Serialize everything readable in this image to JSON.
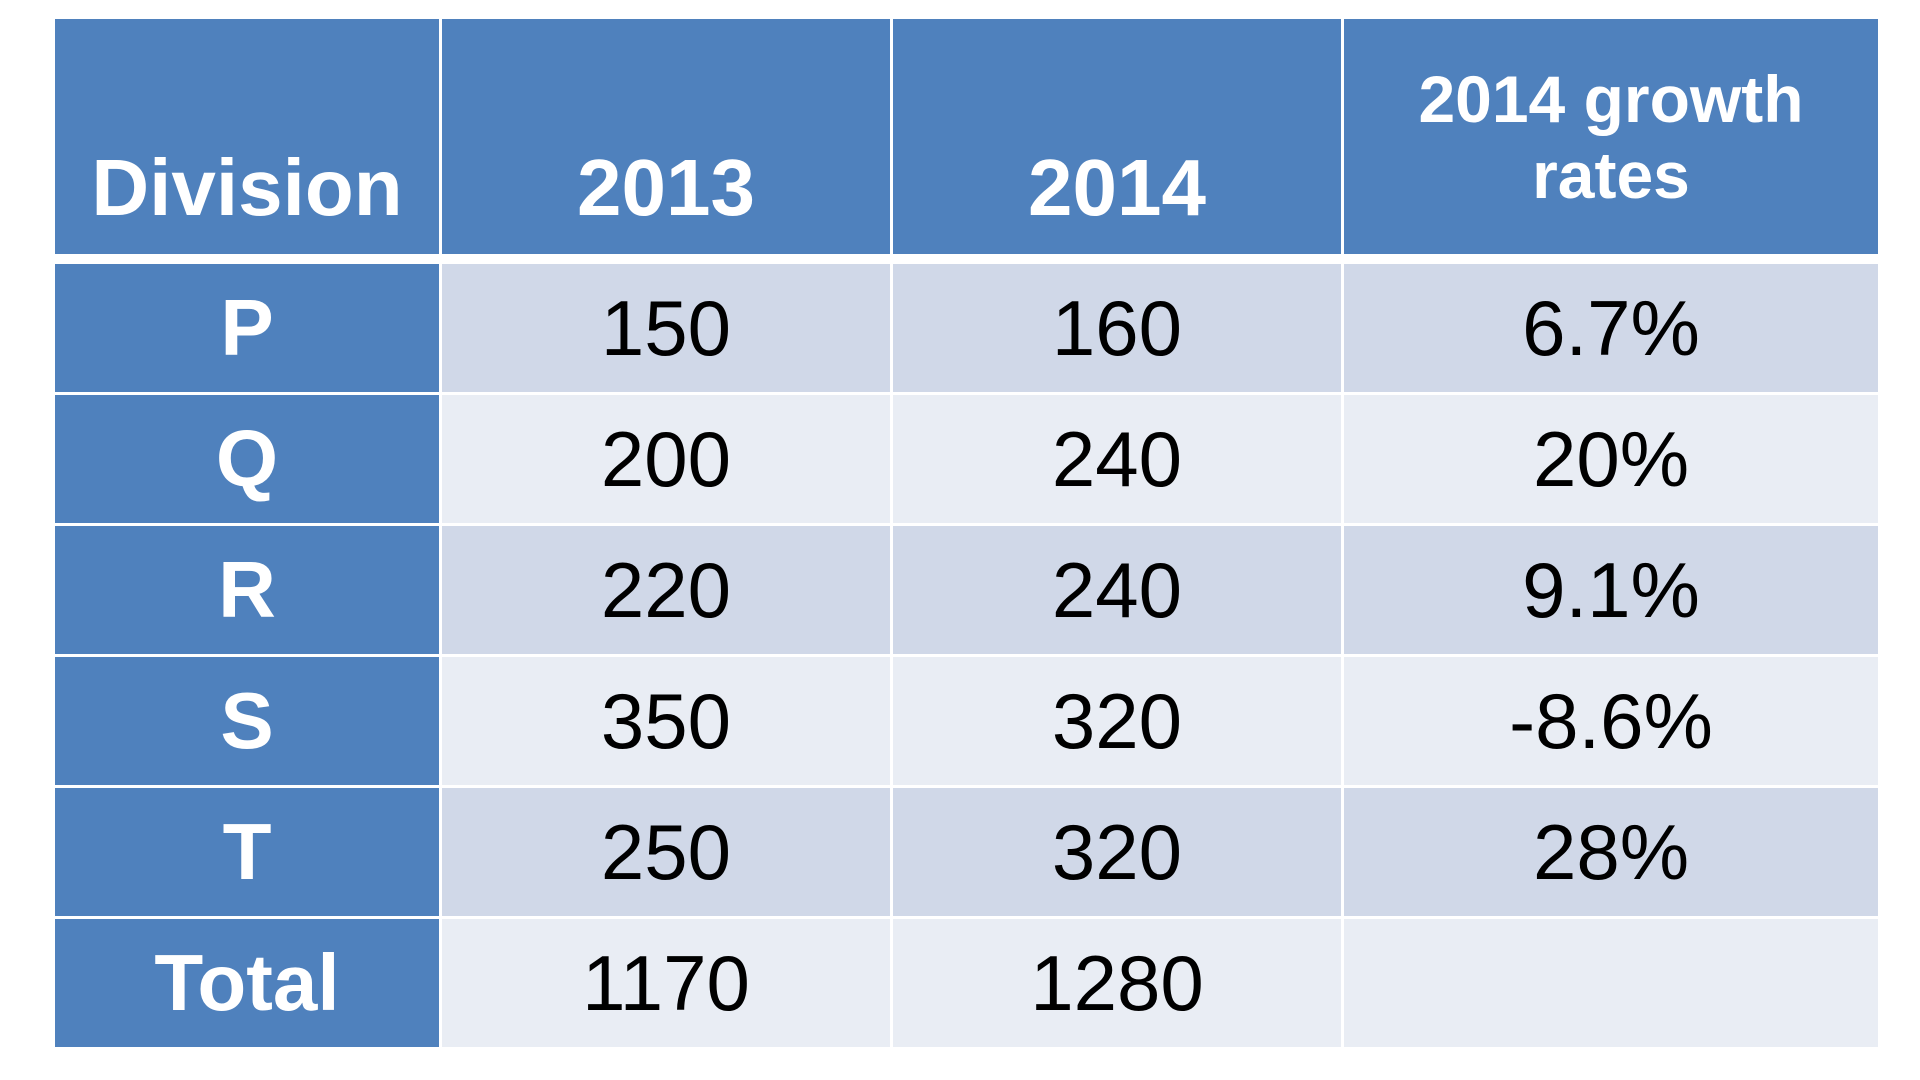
{
  "table": {
    "headers": {
      "division": "Division",
      "y2013": "2013",
      "y2014": "2014",
      "growth_line1": "2014 growth",
      "growth_line2": "rates"
    },
    "rows": [
      {
        "division": "P",
        "y2013": "150",
        "y2014": "160",
        "growth": "6.7%"
      },
      {
        "division": "Q",
        "y2013": "200",
        "y2014": "240",
        "growth": "20%"
      },
      {
        "division": "R",
        "y2013": "220",
        "y2014": "240",
        "growth": "9.1%"
      },
      {
        "division": "S",
        "y2013": "350",
        "y2014": "320",
        "growth": "-8.6%"
      },
      {
        "division": "T",
        "y2013": "250",
        "y2014": "320",
        "growth": "28%"
      }
    ],
    "total": {
      "label": "Total",
      "y2013": "1170",
      "y2014": "1280",
      "growth": ""
    }
  },
  "colors": {
    "header_blue": "#4f81bd",
    "row_dark": "#d0d8e8",
    "row_light": "#e9edf4"
  }
}
